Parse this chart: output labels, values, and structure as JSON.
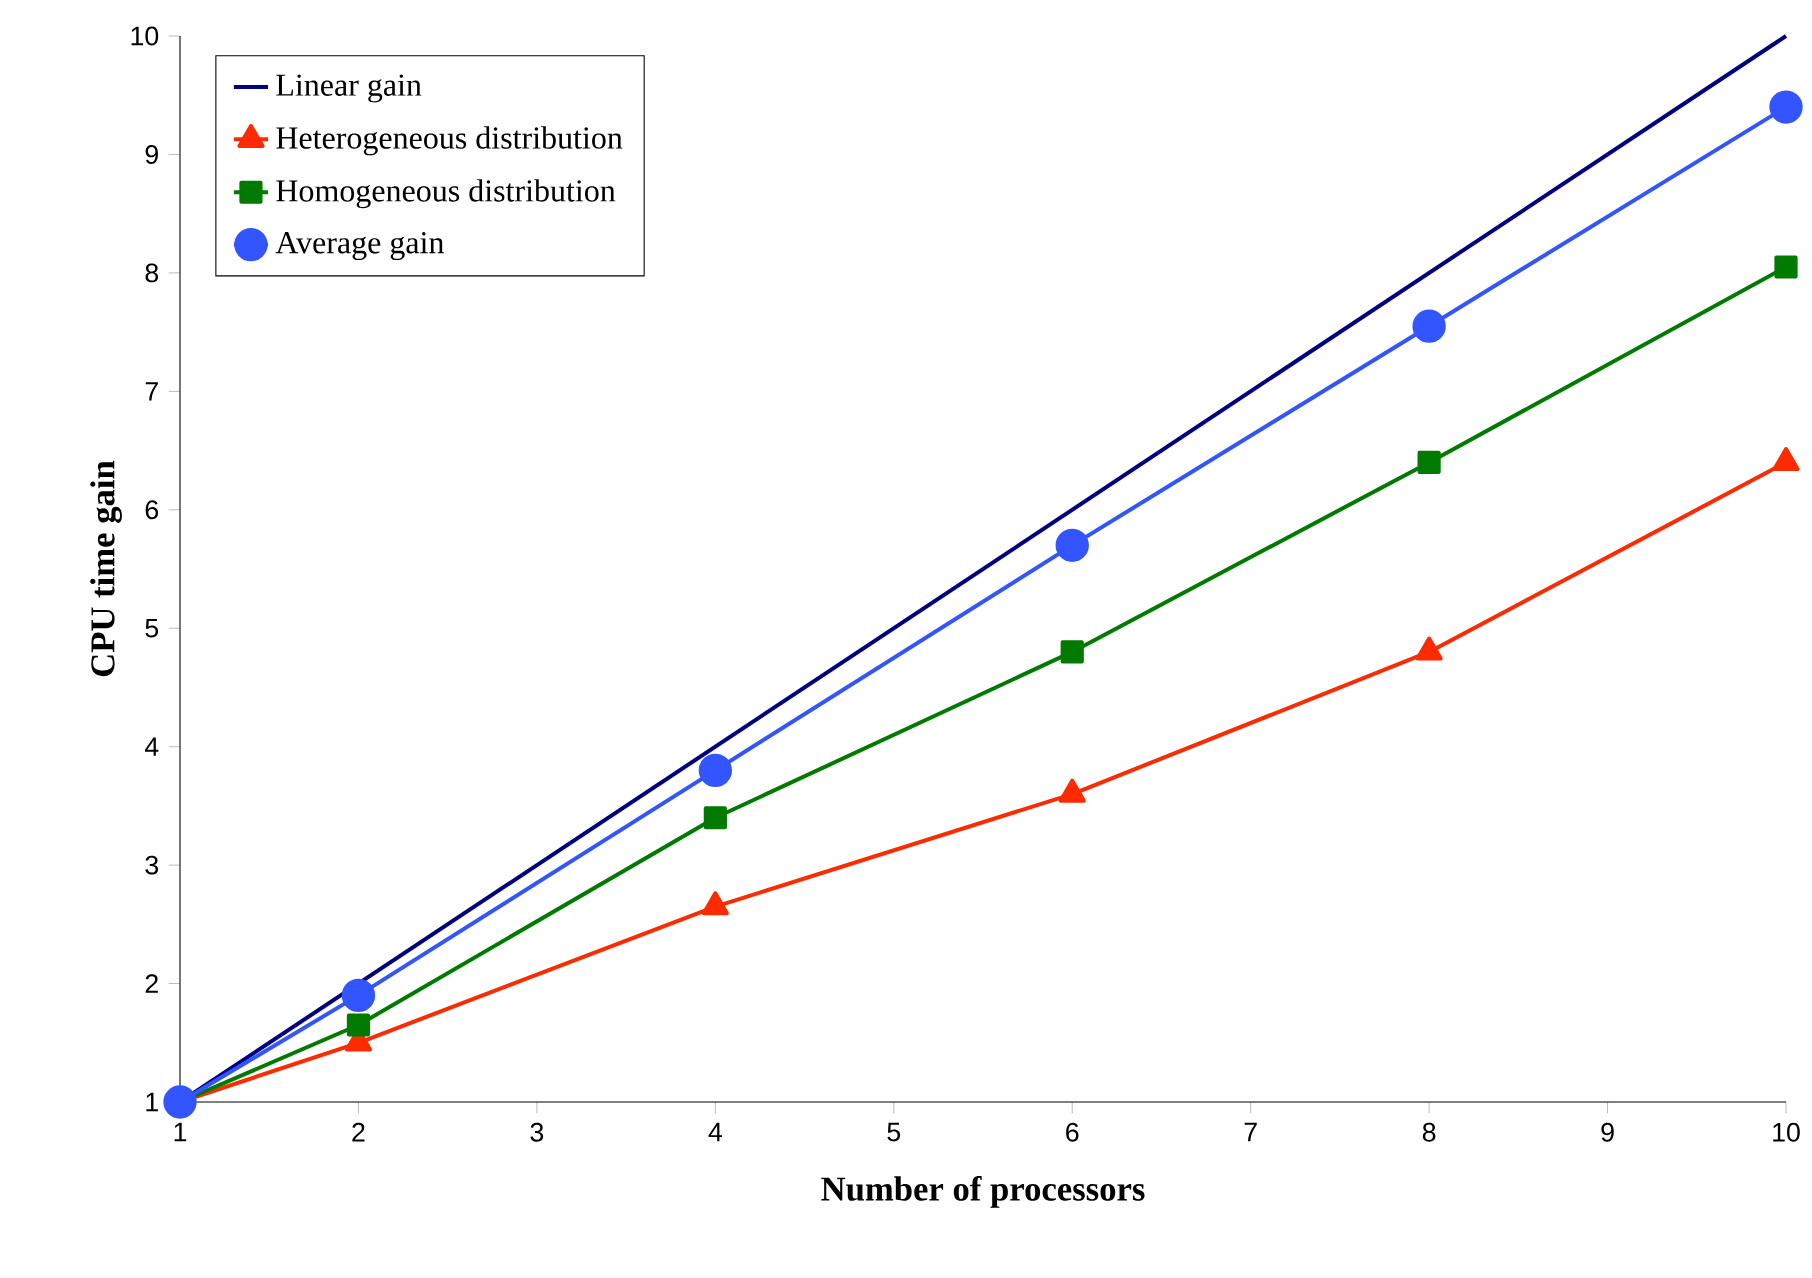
{
  "chart_data": {
    "type": "line",
    "xlabel": "Number of processors",
    "ylabel": "CPU time gain",
    "xlim": [
      1,
      10
    ],
    "ylim": [
      1,
      10
    ],
    "xticks": [
      1,
      2,
      3,
      4,
      5,
      6,
      7,
      8,
      9,
      10
    ],
    "yticks": [
      1,
      2,
      3,
      4,
      5,
      6,
      7,
      8,
      9,
      10
    ],
    "grid": false,
    "legend": "top left",
    "line_style": "solid",
    "series": [
      {
        "name": "Linear gain",
        "color": "#000080",
        "marker": "none",
        "x": [
          1,
          10
        ],
        "values": [
          1,
          10
        ]
      },
      {
        "name": "Heterogeneous distribution",
        "color": "#ff2a00",
        "marker": "triangle",
        "x": [
          1,
          2,
          4,
          6,
          8,
          10
        ],
        "values": [
          1,
          1.5,
          2.65,
          3.6,
          4.8,
          6.4
        ]
      },
      {
        "name": "Homogeneous distribution",
        "color": "#007a00",
        "marker": "square",
        "x": [
          1,
          2,
          4,
          6,
          8,
          10
        ],
        "values": [
          1,
          1.65,
          3.4,
          4.8,
          6.4,
          8.05
        ]
      },
      {
        "name": "Average gain",
        "color": "#3355ff",
        "marker": "circle",
        "x": [
          1,
          2,
          4,
          6,
          8,
          10
        ],
        "values": [
          1,
          1.9,
          3.8,
          5.7,
          7.55,
          9.4
        ]
      }
    ]
  }
}
